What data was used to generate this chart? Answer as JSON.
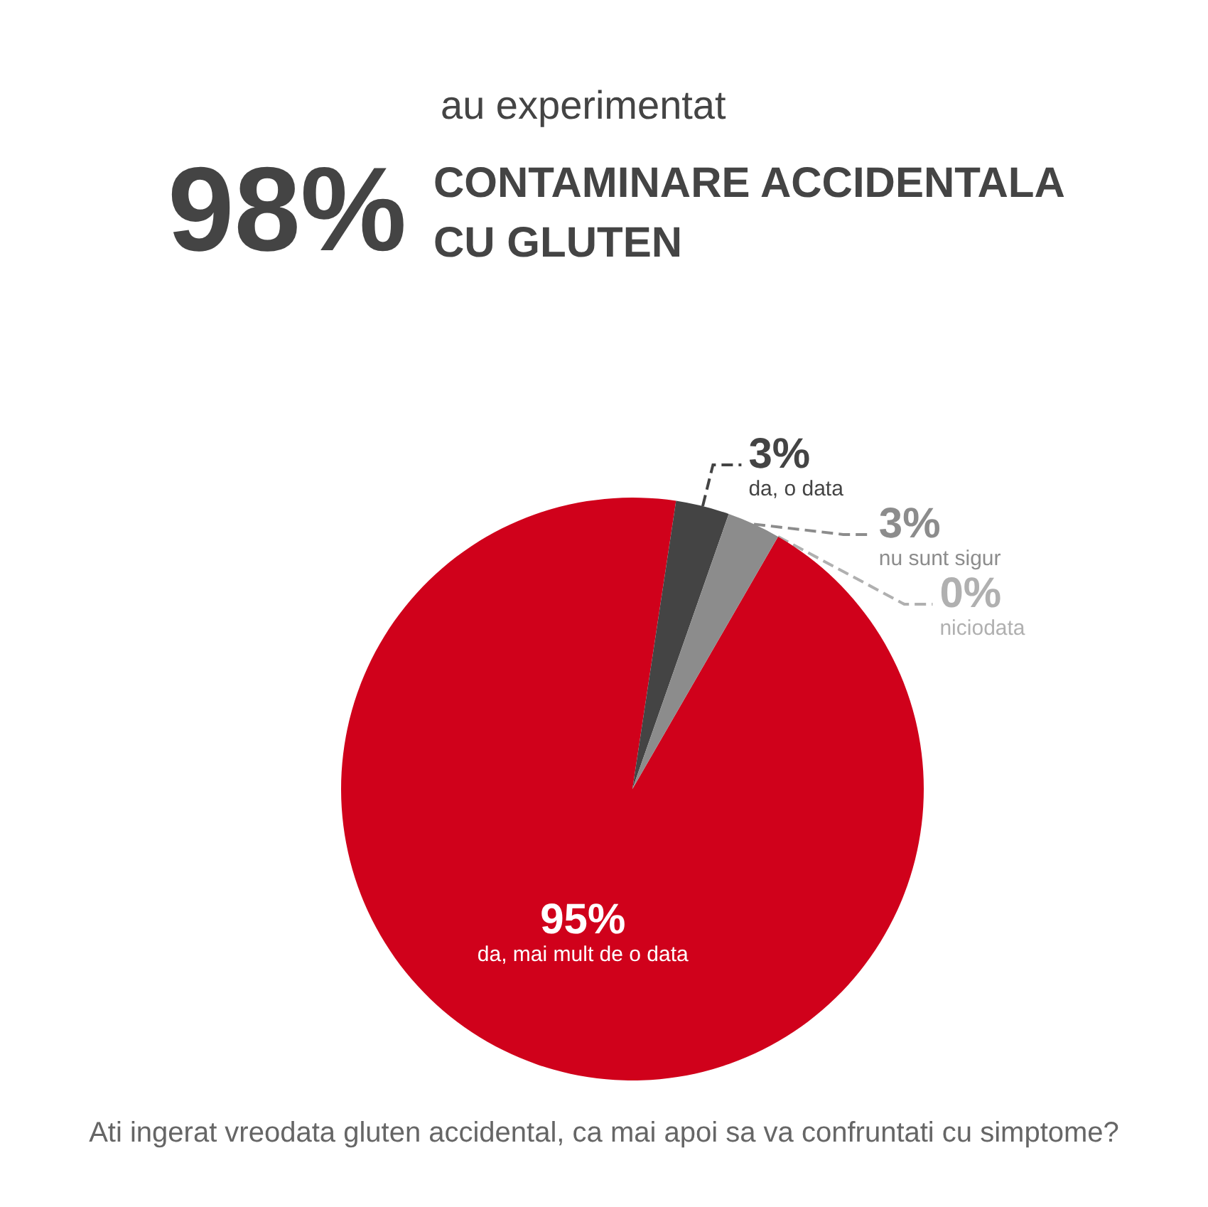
{
  "chart_data": {
    "type": "pie",
    "subtitle": "au experimentat",
    "title": "CONTAMINARE ACCIDENTALA\nCU GLUTEN",
    "annotations": [
      "98%",
      "Ati ingerat vreodata gluten accidental, ca mai apoi sa va confruntati cu simptome?"
    ],
    "categories": [
      "da, mai mult de o data",
      "da, o data",
      "nu sunt sigur",
      "niciodata"
    ],
    "values": [
      95,
      3,
      3,
      0
    ],
    "colors": [
      "#d0011b",
      "#444444",
      "#8c8c8c",
      "#b0b0b0"
    ],
    "value_labels": [
      "95%",
      "3%",
      "3%",
      "0%"
    ]
  }
}
